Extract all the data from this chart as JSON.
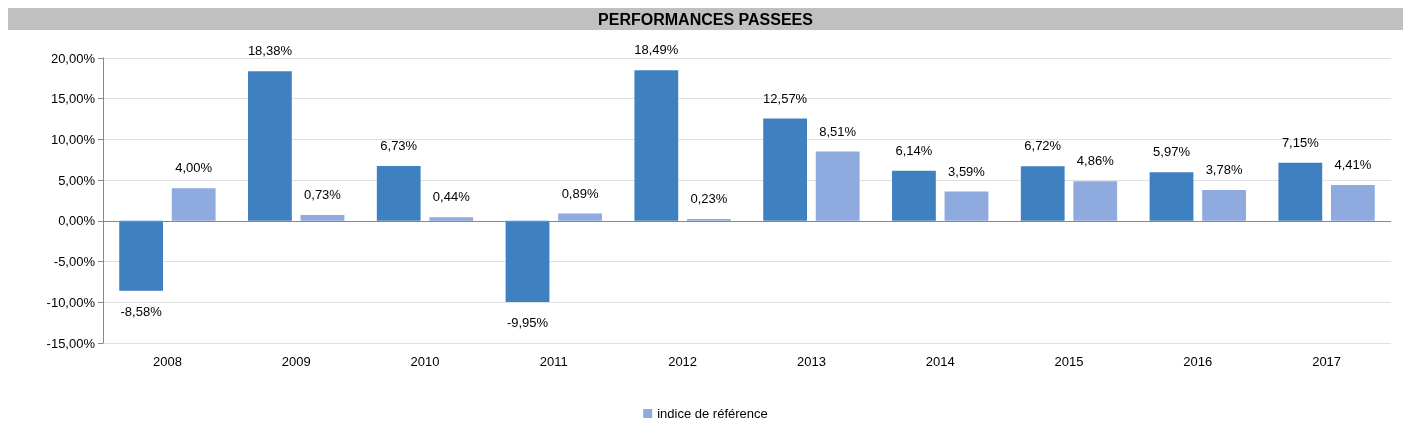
{
  "chart_data": {
    "type": "bar",
    "title": "PERFORMANCES PASSEES",
    "categories": [
      "2008",
      "2009",
      "2010",
      "2011",
      "2012",
      "2013",
      "2014",
      "2015",
      "2016",
      "2017"
    ],
    "series": [
      {
        "color": "#3f80c0",
        "values": [
          -8.58,
          18.38,
          6.73,
          -9.95,
          18.49,
          12.57,
          6.14,
          6.72,
          5.97,
          7.15
        ],
        "value_labels": [
          "-8,58%",
          "18,38%",
          "6,73%",
          "-9,95%",
          "18,49%",
          "12,57%",
          "6,14%",
          "6,72%",
          "5,97%",
          "7,15%"
        ]
      },
      {
        "name": "indice de référence",
        "color": "#8eaadf",
        "values": [
          4.0,
          0.73,
          0.44,
          0.89,
          0.23,
          8.51,
          3.59,
          4.86,
          3.78,
          4.41
        ],
        "value_labels": [
          "4,00%",
          "0,73%",
          "0,44%",
          "0,89%",
          "0,23%",
          "8,51%",
          "3,59%",
          "4,86%",
          "3,78%",
          "4,41%"
        ]
      }
    ],
    "ylim": [
      -15,
      20
    ],
    "yticks": [
      {
        "value": -15,
        "label": "-15,00%"
      },
      {
        "value": -10,
        "label": "-10,00%"
      },
      {
        "value": -5,
        "label": "-5,00%"
      },
      {
        "value": 0,
        "label": "0,00%"
      },
      {
        "value": 5,
        "label": "5,00%"
      },
      {
        "value": 10,
        "label": "10,00%"
      },
      {
        "value": 15,
        "label": "15,00%"
      },
      {
        "value": 20,
        "label": "20,00%"
      }
    ],
    "grid": "y",
    "legend": "bottom"
  }
}
